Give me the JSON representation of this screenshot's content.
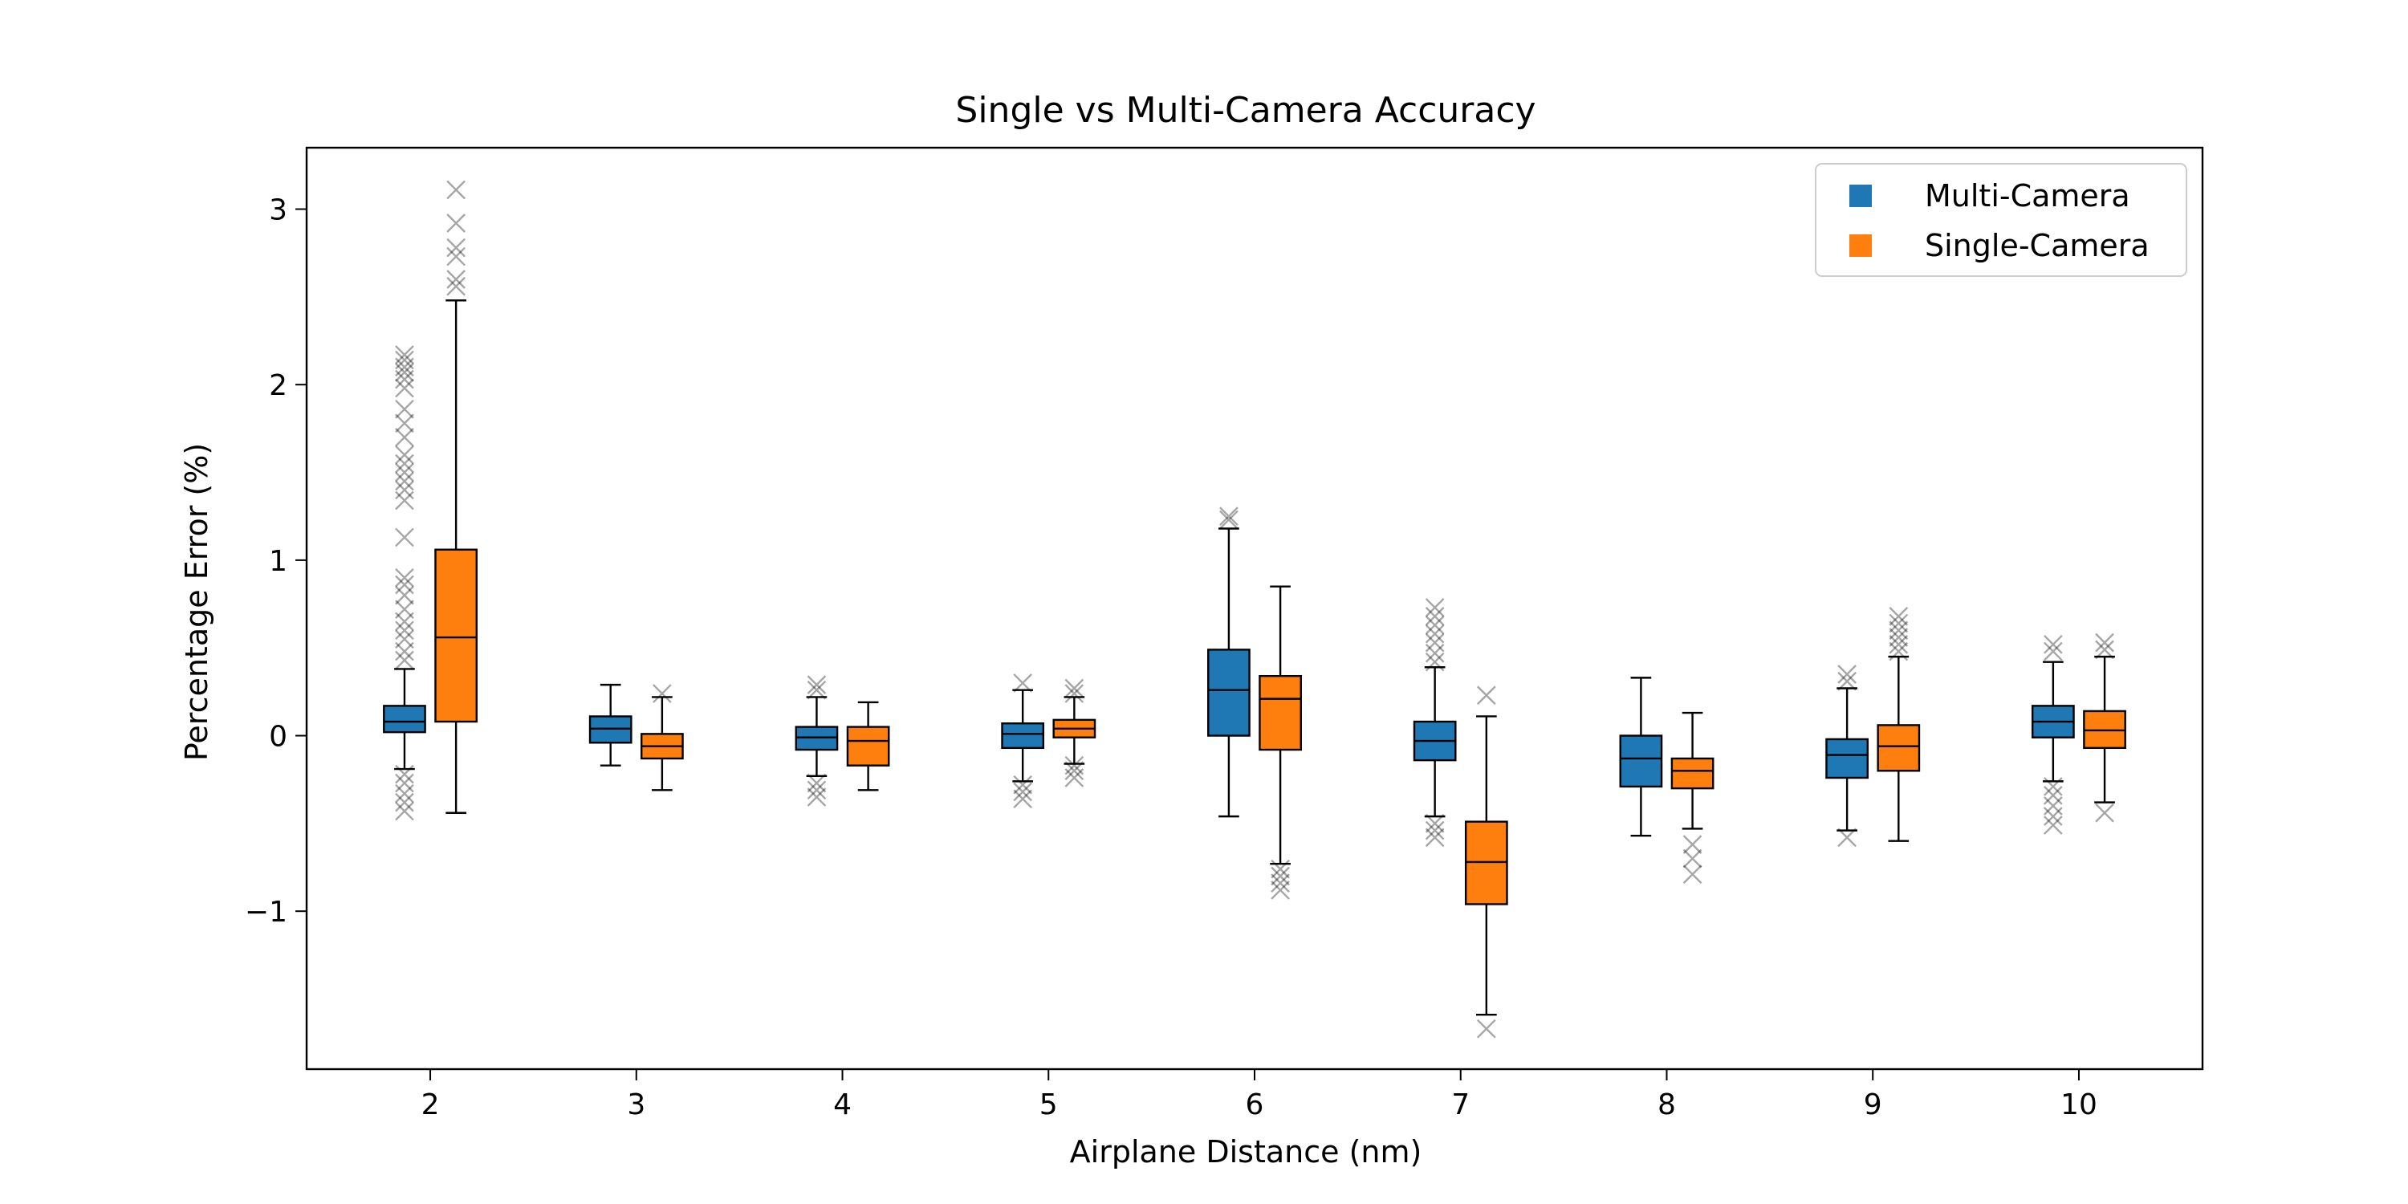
{
  "chart_data": {
    "type": "box",
    "title": "Single vs Multi-Camera Accuracy",
    "xlabel": "Airplane Distance (nm)",
    "ylabel": "Percentage Error (%)",
    "ylim": [
      -1.9,
      3.35
    ],
    "xlim": [
      1.4,
      10.6
    ],
    "yticks": [
      -1,
      0,
      1,
      2,
      3
    ],
    "categories": [
      "2",
      "3",
      "4",
      "5",
      "6",
      "7",
      "8",
      "9",
      "10"
    ],
    "legend": {
      "placement": "top-right"
    },
    "series": [
      {
        "name": "Multi-Camera",
        "color": "#1f77b4",
        "boxes": [
          {
            "whisker_low": -0.19,
            "q1": 0.02,
            "median": 0.08,
            "q3": 0.17,
            "whisker_high": 0.38,
            "outliers": [
              -0.43,
              -0.38,
              -0.33,
              -0.27,
              -0.22,
              0.43,
              0.48,
              0.55,
              0.6,
              0.65,
              0.72,
              0.8,
              0.86,
              0.9,
              1.13,
              1.34,
              1.4,
              1.45,
              1.5,
              1.55,
              1.6,
              1.7,
              1.78,
              1.86,
              1.98,
              2.03,
              2.07,
              2.1,
              2.14,
              2.17
            ]
          },
          {
            "whisker_low": -0.17,
            "q1": -0.04,
            "median": 0.04,
            "q3": 0.11,
            "whisker_high": 0.29,
            "outliers": []
          },
          {
            "whisker_low": -0.23,
            "q1": -0.08,
            "median": -0.01,
            "q3": 0.05,
            "whisker_high": 0.22,
            "outliers": [
              -0.35,
              -0.31,
              -0.27,
              0.26,
              0.29
            ]
          },
          {
            "whisker_low": -0.26,
            "q1": -0.07,
            "median": 0.01,
            "q3": 0.07,
            "whisker_high": 0.26,
            "outliers": [
              -0.36,
              -0.32,
              -0.28,
              0.3
            ]
          },
          {
            "whisker_low": -0.46,
            "q1": 0.0,
            "median": 0.26,
            "q3": 0.49,
            "whisker_high": 1.18,
            "outliers": [
              1.23,
              1.25
            ]
          },
          {
            "whisker_low": -0.46,
            "q1": -0.14,
            "median": -0.03,
            "q3": 0.08,
            "whisker_high": 0.39,
            "outliers": [
              -0.58,
              -0.54,
              -0.5,
              0.42,
              0.47,
              0.53,
              0.58,
              0.63,
              0.68,
              0.73
            ]
          },
          {
            "whisker_low": -0.57,
            "q1": -0.29,
            "median": -0.13,
            "q3": 0.0,
            "whisker_high": 0.33,
            "outliers": []
          },
          {
            "whisker_low": -0.54,
            "q1": -0.24,
            "median": -0.11,
            "q3": -0.02,
            "whisker_high": 0.27,
            "outliers": [
              -0.58,
              0.31,
              0.35
            ]
          },
          {
            "whisker_low": -0.26,
            "q1": -0.01,
            "median": 0.08,
            "q3": 0.17,
            "whisker_high": 0.42,
            "outliers": [
              -0.51,
              -0.46,
              -0.4,
              -0.34,
              -0.29,
              0.48,
              0.52
            ]
          }
        ]
      },
      {
        "name": "Single-Camera",
        "color": "#ff7f0e",
        "boxes": [
          {
            "whisker_low": -0.44,
            "q1": 0.08,
            "median": 0.56,
            "q3": 1.06,
            "whisker_high": 2.48,
            "outliers": [
              2.56,
              2.6,
              2.73,
              2.78,
              2.92,
              3.11
            ]
          },
          {
            "whisker_low": -0.31,
            "q1": -0.13,
            "median": -0.06,
            "q3": 0.01,
            "whisker_high": 0.22,
            "outliers": [
              0.24
            ]
          },
          {
            "whisker_low": -0.31,
            "q1": -0.17,
            "median": -0.03,
            "q3": 0.05,
            "whisker_high": 0.19,
            "outliers": []
          },
          {
            "whisker_low": -0.16,
            "q1": -0.01,
            "median": 0.04,
            "q3": 0.09,
            "whisker_high": 0.22,
            "outliers": [
              -0.24,
              -0.2,
              -0.17,
              0.24,
              0.27
            ]
          },
          {
            "whisker_low": -0.73,
            "q1": -0.08,
            "median": 0.21,
            "q3": 0.34,
            "whisker_high": 0.85,
            "outliers": [
              -0.76,
              -0.8,
              -0.84,
              -0.88
            ]
          },
          {
            "whisker_low": -1.59,
            "q1": -0.96,
            "median": -0.72,
            "q3": -0.49,
            "whisker_high": 0.11,
            "outliers": [
              -1.67,
              0.23
            ]
          },
          {
            "whisker_low": -0.53,
            "q1": -0.3,
            "median": -0.2,
            "q3": -0.13,
            "whisker_high": 0.13,
            "outliers": [
              -0.62,
              -0.7,
              -0.79
            ]
          },
          {
            "whisker_low": -0.6,
            "q1": -0.2,
            "median": -0.06,
            "q3": 0.06,
            "whisker_high": 0.45,
            "outliers": [
              0.48,
              0.52,
              0.56,
              0.6,
              0.64,
              0.68
            ]
          },
          {
            "whisker_low": -0.38,
            "q1": -0.07,
            "median": 0.03,
            "q3": 0.14,
            "whisker_high": 0.45,
            "outliers": [
              -0.44,
              0.49,
              0.53
            ]
          }
        ]
      }
    ]
  }
}
